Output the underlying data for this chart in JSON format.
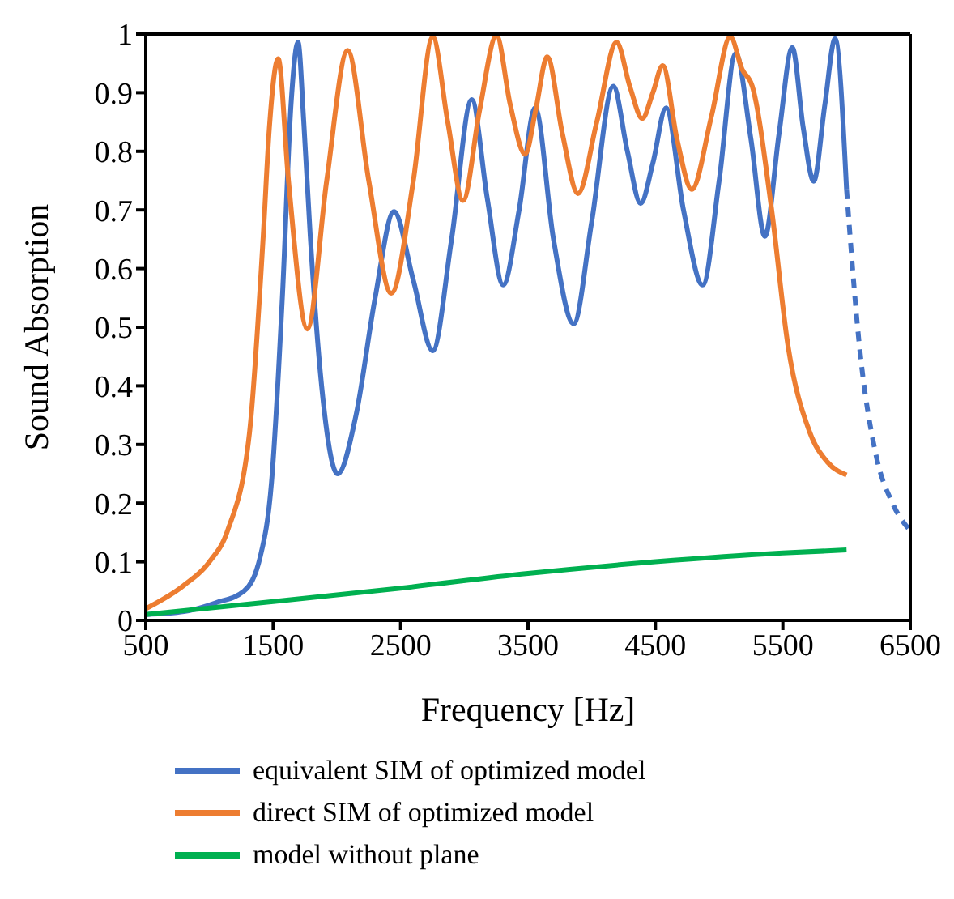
{
  "chart_data": {
    "type": "line",
    "xlabel": "Frequency [Hz]",
    "ylabel": "Sound Absorption",
    "xlim": [
      500,
      6500
    ],
    "xticks": [
      500,
      1500,
      2500,
      3500,
      4500,
      5500,
      6500
    ],
    "ylim": [
      0,
      1
    ],
    "yticks": [
      0,
      0.1,
      0.2,
      0.3,
      0.4,
      0.5,
      0.6,
      0.7,
      0.8,
      0.9,
      1
    ],
    "legend": "bottom",
    "marker": "none",
    "series": [
      {
        "name": "equivalent SIM of optimized model",
        "color": "#4472c4",
        "line_style": "solid",
        "x": [
          500,
          800,
          1050,
          1271,
          1400,
          1487,
          1574,
          1640,
          1695,
          1740,
          1791,
          1880,
          2006,
          2150,
          2300,
          2448,
          2600,
          2752,
          2900,
          3058,
          3180,
          3305,
          3430,
          3556,
          3700,
          3858,
          4000,
          4169,
          4280,
          4384,
          4480,
          4583,
          4720,
          4871,
          5000,
          5130,
          5250,
          5359,
          5470,
          5574,
          5660,
          5742,
          5830,
          5910,
          6000
        ],
        "values": [
          0.01,
          0.015,
          0.03,
          0.05,
          0.11,
          0.236,
          0.56,
          0.88,
          0.986,
          0.85,
          0.655,
          0.4,
          0.25,
          0.35,
          0.55,
          0.697,
          0.58,
          0.46,
          0.65,
          0.888,
          0.72,
          0.572,
          0.7,
          0.874,
          0.65,
          0.506,
          0.68,
          0.911,
          0.8,
          0.711,
          0.78,
          0.874,
          0.7,
          0.572,
          0.75,
          0.967,
          0.82,
          0.655,
          0.83,
          0.977,
          0.84,
          0.749,
          0.88,
          0.992,
          0.735
        ]
      },
      {
        "color": "#4472c4",
        "line_style": "dashed",
        "x": [
          6000,
          6100,
          6230,
          6360,
          6500
        ],
        "values": [
          0.735,
          0.47,
          0.283,
          0.2,
          0.153
        ]
      },
      {
        "name": "direct SIM of optimized model",
        "color": "#ed7d31",
        "line_style": "solid",
        "x": [
          500,
          800,
          1000,
          1142,
          1314,
          1422,
          1470,
          1539,
          1620,
          1768,
          1920,
          2084,
          2250,
          2427,
          2600,
          2752,
          2870,
          2990,
          3120,
          3253,
          3360,
          3478,
          3560,
          3651,
          3770,
          3892,
          4040,
          4195,
          4300,
          4397,
          4480,
          4557,
          4670,
          4785,
          4940,
          5088,
          5180,
          5260,
          5411,
          5540,
          5711,
          5850,
          6000
        ],
        "values": [
          0.02,
          0.06,
          0.1,
          0.153,
          0.32,
          0.656,
          0.84,
          0.958,
          0.75,
          0.497,
          0.75,
          0.972,
          0.75,
          0.558,
          0.75,
          0.995,
          0.85,
          0.716,
          0.87,
          0.997,
          0.88,
          0.795,
          0.87,
          0.961,
          0.83,
          0.728,
          0.85,
          0.986,
          0.91,
          0.856,
          0.9,
          0.946,
          0.82,
          0.735,
          0.86,
          0.995,
          0.94,
          0.911,
          0.702,
          0.469,
          0.321,
          0.27,
          0.248
        ]
      },
      {
        "name": "model without plane",
        "color": "#00b050",
        "line_style": "solid",
        "x": [
          500,
          1500,
          2500,
          3500,
          4500,
          5500,
          6000
        ],
        "values": [
          0.01,
          0.032,
          0.055,
          0.08,
          0.1,
          0.115,
          0.12
        ]
      }
    ]
  }
}
